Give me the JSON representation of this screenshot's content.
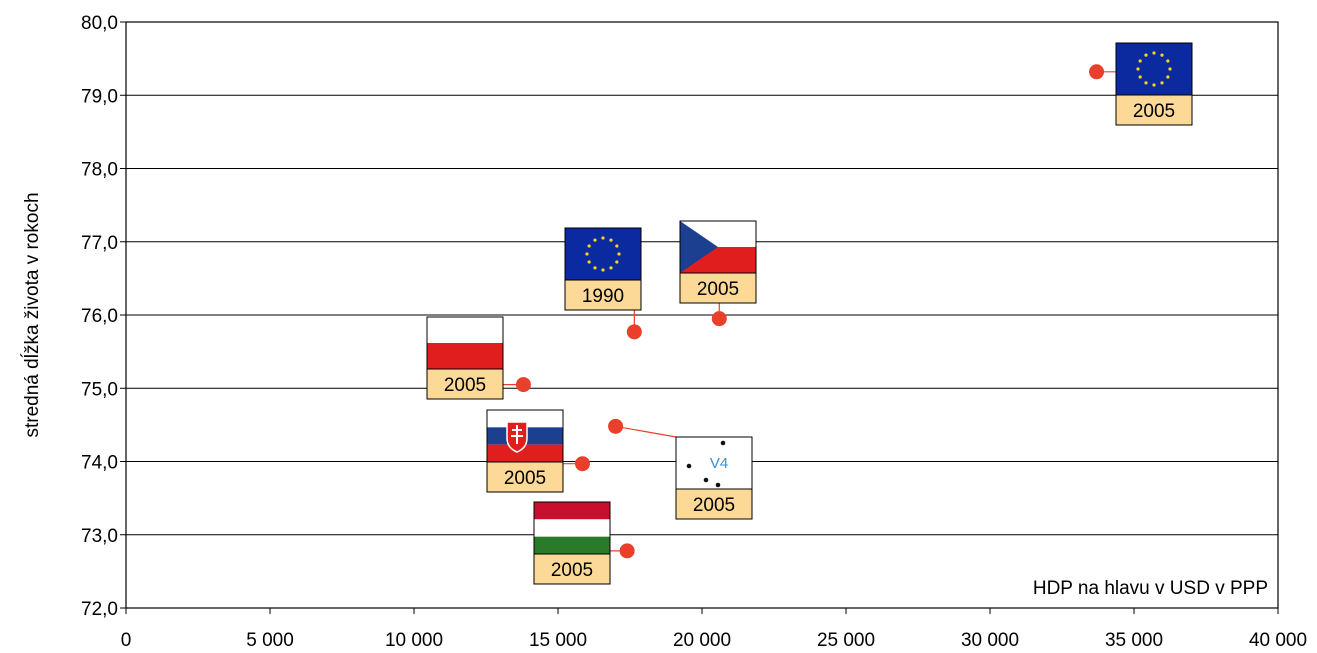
{
  "chart_data": {
    "type": "scatter",
    "title": "",
    "xlabel": "HDP na hlavu v USD v PPP",
    "ylabel": "stredná dĺžka života v rokoch",
    "xlim": [
      0,
      40000
    ],
    "ylim": [
      72,
      80
    ],
    "grid": true,
    "x_ticks": [
      {
        "value": 0,
        "label": "0"
      },
      {
        "value": 5000,
        "label": "5 000"
      },
      {
        "value": 10000,
        "label": "10 000"
      },
      {
        "value": 15000,
        "label": "15 000"
      },
      {
        "value": 20000,
        "label": "20 000"
      },
      {
        "value": 25000,
        "label": "25 000"
      },
      {
        "value": 30000,
        "label": "30 000"
      },
      {
        "value": 35000,
        "label": "35 000"
      },
      {
        "value": 40000,
        "label": "40 000"
      }
    ],
    "y_ticks": [
      {
        "value": 72,
        "label": "72,0"
      },
      {
        "value": 73,
        "label": "73,0"
      },
      {
        "value": 74,
        "label": "74,0"
      },
      {
        "value": 75,
        "label": "75,0"
      },
      {
        "value": 76,
        "label": "76,0"
      },
      {
        "value": 77,
        "label": "77,0"
      },
      {
        "value": 78,
        "label": "78,0"
      },
      {
        "value": 79,
        "label": "79,0"
      },
      {
        "value": 80,
        "label": "80,0"
      }
    ],
    "points": [
      {
        "x": 33700,
        "y": 79.32,
        "label": "2005",
        "flag": "eu-flag"
      },
      {
        "x": 17650,
        "y": 75.77,
        "label": "1990",
        "flag": "eu-flag"
      },
      {
        "x": 20600,
        "y": 75.95,
        "label": "2005",
        "flag": "czech-flag"
      },
      {
        "x": 13800,
        "y": 75.05,
        "label": "2005",
        "flag": "polish-flag"
      },
      {
        "x": 15850,
        "y": 73.97,
        "label": "2005",
        "flag": "slovak-flag"
      },
      {
        "x": 17000,
        "y": 74.48,
        "label": "2005",
        "flag": "v4-logo",
        "flag_text": "V4"
      },
      {
        "x": 17400,
        "y": 72.78,
        "label": "2005",
        "flag": "hungarian-flag"
      }
    ],
    "colors": {
      "marker": "#e8402b",
      "label_bg": "#fcd996",
      "eu_blue": "#0b2aa0",
      "eu_star": "#f7d417",
      "czech_blue": "#1d3f8f",
      "red": "#e01e1e",
      "hungary_green": "#2a7a2a",
      "v4_text": "#3b8fd0"
    }
  }
}
